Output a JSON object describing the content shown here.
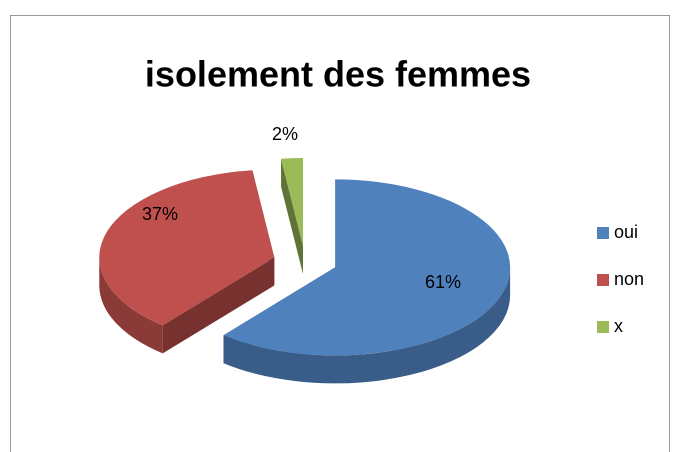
{
  "chart_data": {
    "type": "pie",
    "title": "isolement des femmes",
    "categories": [
      "oui",
      "non",
      "x"
    ],
    "values": [
      61,
      37,
      2
    ],
    "value_labels": [
      "61%",
      "37%",
      "2%"
    ],
    "colors": [
      "#4f81bd",
      "#c0504d",
      "#9bbb59"
    ],
    "legend": "right"
  }
}
